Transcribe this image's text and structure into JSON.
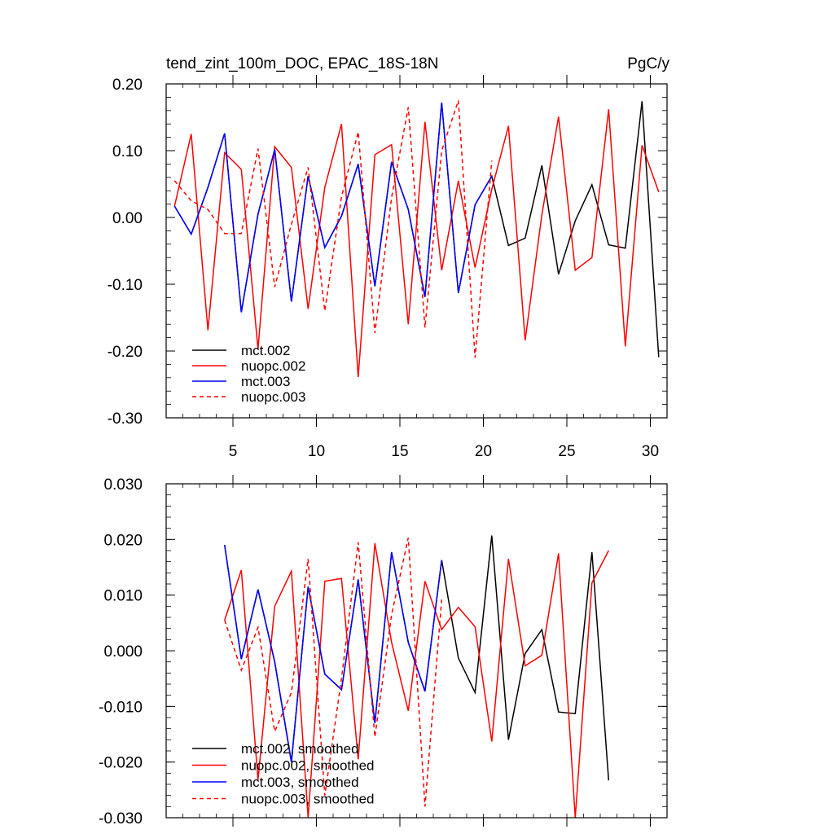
{
  "chart_data": [
    {
      "type": "line",
      "title": "tend_zint_100m_DOC, EPAC_18S-18N",
      "units": "PgC/y",
      "xlim": [
        1,
        31
      ],
      "ylim": [
        -0.3,
        0.2
      ],
      "x_ticks": [
        5,
        10,
        15,
        20,
        25,
        30
      ],
      "x_tick_labels": [
        "5",
        "10",
        "15",
        "20",
        "25",
        "30"
      ],
      "y_ticks": [
        0.2,
        0.1,
        0.0,
        -0.1,
        -0.2,
        -0.3
      ],
      "y_tick_labels": [
        "0.20",
        "0.10",
        "0.00",
        "-0.10",
        "-0.20",
        "-0.30"
      ],
      "legend_position": "bottom-left",
      "series": [
        {
          "name": "mct.002",
          "color": "#000000",
          "dash": "solid",
          "x": [
            1.5,
            2.5,
            3.5,
            4.5,
            5.5,
            6.5,
            7.5,
            8.5,
            9.5,
            10.5,
            11.5,
            12.5,
            13.5,
            14.5,
            15.5,
            16.5,
            17.5,
            18.5,
            19.5,
            20.5,
            21.5,
            22.5,
            23.5,
            24.5,
            25.5,
            26.5,
            27.5,
            28.5,
            29.5,
            30.5
          ],
          "values": [
            0.017,
            -0.025,
            0.045,
            0.126,
            -0.142,
            0.005,
            0.102,
            -0.126,
            0.062,
            -0.045,
            0.002,
            0.08,
            -0.103,
            0.083,
            0.012,
            -0.119,
            0.172,
            -0.113,
            0.019,
            0.062,
            -0.042,
            -0.031,
            0.078,
            -0.085,
            -0.005,
            0.049,
            -0.041,
            -0.046,
            0.174,
            -0.209
          ]
        },
        {
          "name": "nuopc.002",
          "color": "#ff0000",
          "dash": "solid",
          "x": [
            1.5,
            2.5,
            3.5,
            4.5,
            5.5,
            6.5,
            7.5,
            8.5,
            9.5,
            10.5,
            11.5,
            12.5,
            13.5,
            14.5,
            15.5,
            16.5,
            17.5,
            18.5,
            19.5,
            20.5,
            21.5,
            22.5,
            23.5,
            24.5,
            25.5,
            26.5,
            27.5,
            28.5,
            29.5,
            30.5
          ],
          "values": [
            0.017,
            0.125,
            -0.169,
            0.097,
            0.072,
            -0.197,
            0.106,
            0.075,
            -0.137,
            0.045,
            0.14,
            -0.239,
            0.094,
            0.109,
            -0.16,
            0.143,
            -0.079,
            0.055,
            -0.075,
            0.042,
            0.137,
            -0.184,
            0.004,
            0.151,
            -0.079,
            -0.06,
            0.162,
            -0.193,
            0.108,
            0.038
          ]
        },
        {
          "name": "mct.003",
          "color": "#0000ff",
          "dash": "solid",
          "x": [
            1.5,
            2.5,
            3.5,
            4.5,
            5.5,
            6.5,
            7.5,
            8.5,
            9.5,
            10.5,
            11.5,
            12.5,
            13.5,
            14.5,
            15.5,
            16.5,
            17.5,
            18.5,
            19.5,
            20.5
          ],
          "values": [
            0.017,
            -0.025,
            0.045,
            0.126,
            -0.142,
            0.005,
            0.102,
            -0.126,
            0.062,
            -0.045,
            0.002,
            0.08,
            -0.103,
            0.083,
            0.012,
            -0.119,
            0.172,
            -0.113,
            0.019,
            0.062
          ]
        },
        {
          "name": "nuopc.003",
          "color": "#ff0000",
          "dash": "dashed",
          "x": [
            1.5,
            2.5,
            3.5,
            4.5,
            5.5,
            6.5,
            7.5,
            8.5,
            9.5,
            10.5,
            11.5,
            12.5,
            13.5,
            14.5,
            15.5,
            16.5,
            17.5,
            18.5,
            19.5,
            20.5
          ],
          "values": [
            0.055,
            0.025,
            0.012,
            -0.024,
            -0.024,
            0.103,
            -0.104,
            -0.01,
            0.075,
            -0.14,
            0.031,
            0.128,
            -0.173,
            0.03,
            0.165,
            -0.165,
            0.1,
            0.175,
            -0.21,
            0.085
          ]
        }
      ]
    },
    {
      "type": "line",
      "title": "",
      "xlim": [
        1,
        31
      ],
      "ylim": [
        -0.03,
        0.03
      ],
      "x_ticks": [
        5,
        10,
        15,
        20,
        25,
        30
      ],
      "x_tick_labels": [],
      "y_ticks": [
        0.03,
        0.02,
        0.01,
        0.0,
        -0.01,
        -0.02,
        -0.03
      ],
      "y_tick_labels": [
        "0.030",
        "0.020",
        "0.010",
        "0.000",
        "-0.010",
        "-0.020",
        "-0.030"
      ],
      "legend_position": "bottom-left",
      "series": [
        {
          "name": "mct.002, smoothed",
          "color": "#000000",
          "dash": "solid",
          "x": [
            4.5,
            5.5,
            6.5,
            7.5,
            8.5,
            9.5,
            10.5,
            11.5,
            12.5,
            13.5,
            14.5,
            15.5,
            16.5,
            17.5,
            18.5,
            19.5,
            20.5,
            21.5,
            22.5,
            23.5,
            24.5,
            25.5,
            26.5,
            27.5
          ],
          "values": [
            0.019,
            -0.0015,
            0.011,
            -0.002,
            -0.02,
            0.0115,
            -0.0042,
            -0.007,
            0.0128,
            -0.013,
            0.0177,
            0.0015,
            -0.0073,
            0.0163,
            -0.0013,
            -0.0075,
            0.0207,
            -0.016,
            -0.0005,
            0.0038,
            -0.011,
            -0.0113,
            0.0177,
            -0.0233
          ]
        },
        {
          "name": "nuopc.002, smoothed",
          "color": "#ff0000",
          "dash": "solid",
          "x": [
            4.5,
            5.5,
            6.5,
            7.5,
            8.5,
            9.5,
            10.5,
            11.5,
            12.5,
            13.5,
            14.5,
            15.5,
            16.5,
            17.5,
            18.5,
            19.5,
            20.5,
            21.5,
            22.5,
            23.5,
            24.5,
            25.5,
            26.5,
            27.5
          ],
          "values": [
            0.0055,
            0.0145,
            -0.0232,
            0.008,
            0.0143,
            -0.03,
            0.0125,
            0.013,
            -0.0195,
            0.0193,
            0.0015,
            -0.0108,
            0.0125,
            0.0038,
            0.0078,
            0.0043,
            -0.0163,
            0.0165,
            -0.0027,
            -0.0008,
            0.0175,
            -0.03,
            0.0122,
            0.018
          ]
        },
        {
          "name": "mct.003, smoothed",
          "color": "#0000ff",
          "dash": "solid",
          "x": [
            4.5,
            5.5,
            6.5,
            7.5,
            8.5,
            9.5,
            10.5,
            11.5,
            12.5,
            13.5,
            14.5,
            15.5,
            16.5,
            17.5
          ],
          "values": [
            0.019,
            -0.0015,
            0.011,
            -0.002,
            -0.02,
            0.0115,
            -0.0042,
            -0.007,
            0.0128,
            -0.013,
            0.0177,
            0.0015,
            -0.0073,
            0.0163
          ]
        },
        {
          "name": "nuopc.003, smoothed",
          "color": "#ff0000",
          "dash": "dashed",
          "x": [
            4.5,
            5.5,
            6.5,
            7.5,
            8.5,
            9.5,
            10.5,
            11.5,
            12.5,
            13.5,
            14.5,
            15.5,
            16.5,
            17.5
          ],
          "values": [
            0.0055,
            -0.0035,
            0.0042,
            -0.0145,
            -0.0075,
            0.0165,
            -0.026,
            -0.005,
            0.0195,
            -0.0155,
            0.0065,
            0.0203,
            -0.028,
            0.0092
          ]
        }
      ]
    }
  ]
}
